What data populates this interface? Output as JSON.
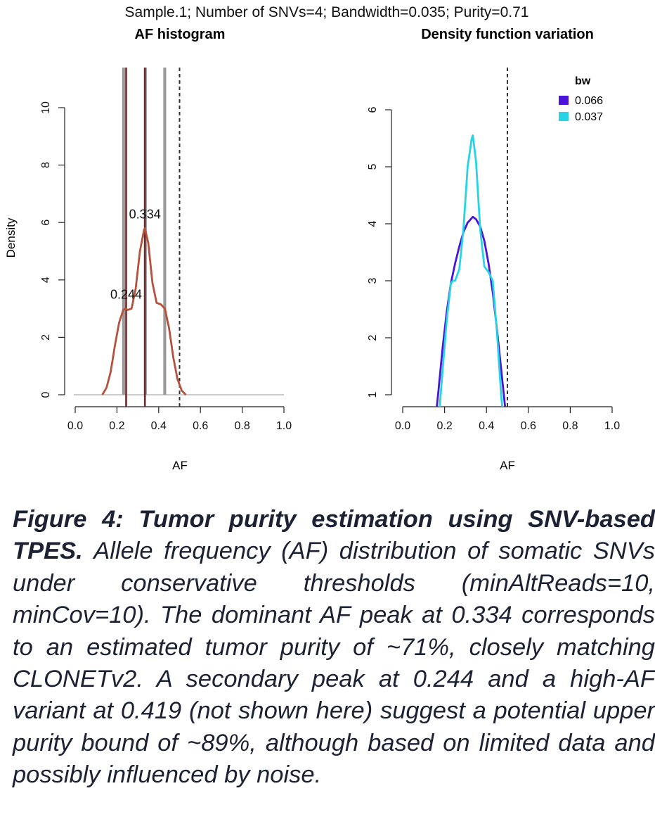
{
  "figure": {
    "suptitle": "Sample.1; Number of SNVs=4; Bandwidth=0.035; Purity=0.71"
  },
  "chart_data": [
    {
      "type": "line",
      "title": "AF histogram",
      "xlabel": "AF",
      "ylabel": "Density",
      "xlim": [
        0,
        1
      ],
      "ylim": [
        0,
        10
      ],
      "x_ticks": [
        "0.0",
        "0.2",
        "0.4",
        "0.6",
        "0.8",
        "1.0"
      ],
      "y_ticks": [
        "0",
        "2",
        "4",
        "6",
        "8",
        "10"
      ],
      "grid": false,
      "bars": [
        {
          "x": 0.232,
          "width": 0.014
        },
        {
          "x": 0.336,
          "width": 0.014
        },
        {
          "x": 0.429,
          "width": 0.014
        }
      ],
      "vlines": [
        0.244,
        0.334
      ],
      "dashed_vline": 0.5,
      "density": {
        "x": [
          0.13,
          0.15,
          0.17,
          0.19,
          0.21,
          0.23,
          0.24,
          0.25,
          0.27,
          0.29,
          0.31,
          0.33,
          0.334,
          0.35,
          0.37,
          0.39,
          0.41,
          0.43,
          0.45,
          0.47,
          0.49,
          0.51,
          0.53
        ],
        "y": [
          0.0,
          0.25,
          0.8,
          1.7,
          2.5,
          2.95,
          3.0,
          2.95,
          3.0,
          3.7,
          5.0,
          5.75,
          5.8,
          5.3,
          3.9,
          3.2,
          3.15,
          3.0,
          2.3,
          1.3,
          0.55,
          0.15,
          0.0
        ],
        "color": "#b5523e"
      },
      "peak_labels": [
        {
          "x": 0.244,
          "y": 3.0,
          "text": "0.244"
        },
        {
          "x": 0.334,
          "y": 5.8,
          "text": "0.334"
        }
      ]
    },
    {
      "type": "line",
      "title": "Density function variation",
      "xlabel": "AF",
      "ylabel": "",
      "xlim": [
        0,
        1
      ],
      "ylim": [
        1,
        6
      ],
      "x_ticks": [
        "0.0",
        "0.2",
        "0.4",
        "0.6",
        "0.8",
        "1.0"
      ],
      "y_ticks": [
        "1",
        "2",
        "3",
        "4",
        "5",
        "6"
      ],
      "grid": false,
      "dashed_vline": 0.5,
      "legend": {
        "title": "bw",
        "placement": "top-right"
      },
      "series": [
        {
          "name": "0.066",
          "color": "#4a14d8",
          "x": [
            0.155,
            0.17,
            0.19,
            0.21,
            0.23,
            0.25,
            0.27,
            0.29,
            0.31,
            0.33,
            0.335,
            0.35,
            0.37,
            0.39,
            0.41,
            0.43,
            0.45,
            0.47,
            0.49,
            0.5
          ],
          "y": [
            0.5,
            1.05,
            1.8,
            2.45,
            2.95,
            3.3,
            3.6,
            3.85,
            4.02,
            4.1,
            4.12,
            4.08,
            3.95,
            3.7,
            3.3,
            2.8,
            2.15,
            1.45,
            0.75,
            0.45
          ]
        },
        {
          "name": "0.037",
          "color": "#26d4e6",
          "x": [
            0.175,
            0.19,
            0.21,
            0.23,
            0.24,
            0.25,
            0.27,
            0.29,
            0.31,
            0.33,
            0.335,
            0.35,
            0.37,
            0.39,
            0.41,
            0.43,
            0.45,
            0.47,
            0.48
          ],
          "y": [
            0.7,
            1.4,
            2.3,
            2.95,
            3.0,
            3.0,
            3.2,
            3.9,
            5.0,
            5.5,
            5.55,
            5.1,
            3.9,
            3.25,
            3.15,
            3.0,
            2.1,
            1.0,
            0.6
          ]
        }
      ]
    }
  ],
  "caption": {
    "lead": "Figure 4: Tumor purity estimation using SNV-based TPES.",
    "body": "Allele frequency (AF) distribution of somatic SNVs under conservative thresholds (minAltReads=10, minCov=10). The dominant AF peak at 0.334 corresponds to an estimated tumor purity of ~71%, closely matching CLONETv2. A secondary peak at 0.244 and a high-AF variant at 0.419 (not shown here) suggest a potential upper purity bound of ~89%, although based on limited data and possibly influenced by noise."
  }
}
